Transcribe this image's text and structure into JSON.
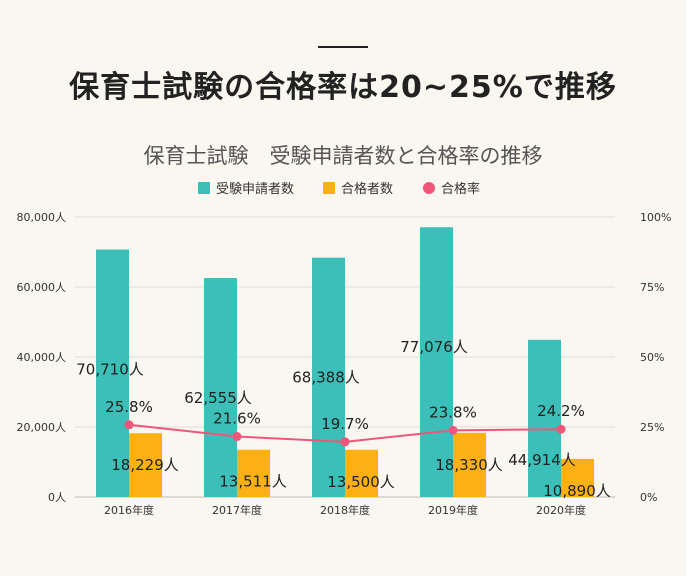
{
  "page": {
    "headline": "保育士試験の合格率は20~25%で推移"
  },
  "chart_data": {
    "type": "bar",
    "title": "保育士試験　受験申請者数と合格率の推移",
    "categories": [
      "2016年度",
      "2017年度",
      "2018年度",
      "2019年度",
      "2020年度"
    ],
    "series": [
      {
        "name": "受験申請者数",
        "kind": "bar",
        "axis": "left",
        "color": "#3bbfb8",
        "values": [
          70710,
          62555,
          68388,
          77076,
          44914
        ],
        "labels": [
          "70,710人",
          "62,555人",
          "68,388人",
          "77,076人",
          "44,914人"
        ]
      },
      {
        "name": "合格者数",
        "kind": "bar",
        "axis": "left",
        "color": "#fbb114",
        "values": [
          18229,
          13511,
          13500,
          18330,
          10890
        ],
        "labels": [
          "18,229人",
          "13,511人",
          "13,500人",
          "18,330人",
          "10,890人"
        ]
      },
      {
        "name": "合格率",
        "kind": "line",
        "axis": "right",
        "color": "#f0567a",
        "values": [
          25.8,
          21.6,
          19.7,
          23.8,
          24.2
        ],
        "labels": [
          "25.8%",
          "21.6%",
          "19.7%",
          "23.8%",
          "24.2%"
        ]
      }
    ],
    "y_left": {
      "range": [
        0,
        80000
      ],
      "ticks": [
        0,
        20000,
        40000,
        60000,
        80000
      ],
      "tick_labels": [
        "0人",
        "20,000人",
        "40,000人",
        "60,000人",
        "80,000人"
      ]
    },
    "y_right": {
      "range": [
        0,
        100
      ],
      "ticks": [
        0,
        25,
        50,
        75,
        100
      ],
      "tick_labels": [
        "0%",
        "25%",
        "50%",
        "75%",
        "100%"
      ]
    },
    "grid": true,
    "legend_position": "top-center"
  }
}
